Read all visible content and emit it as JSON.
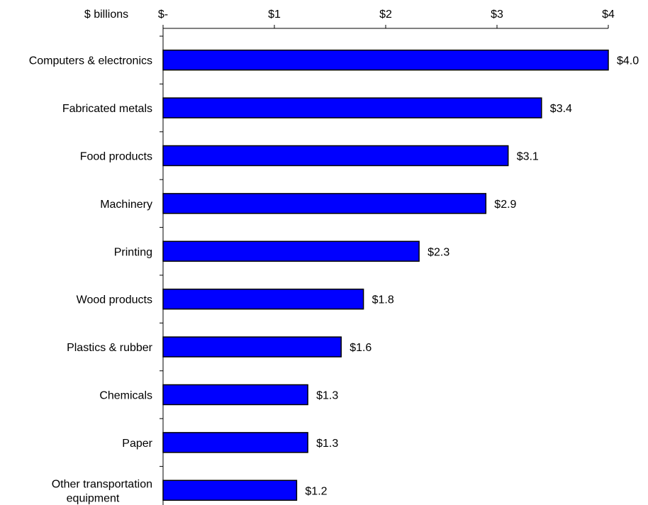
{
  "chart_data": {
    "type": "bar",
    "orientation": "horizontal",
    "unit_label": "$ billions",
    "title": "",
    "xlabel": "",
    "ylabel": "",
    "xlim": [
      0,
      4
    ],
    "x_ticks": [
      {
        "value": 0,
        "label": "$-"
      },
      {
        "value": 1,
        "label": "$1"
      },
      {
        "value": 2,
        "label": "$2"
      },
      {
        "value": 3,
        "label": "$3"
      },
      {
        "value": 4,
        "label": "$4"
      }
    ],
    "x_axis_position": "top",
    "grid": false,
    "legend": "none",
    "bar_color": "#0000FF",
    "bar_edge_color": "#000000",
    "categories": [
      [
        "Computers & electronics"
      ],
      [
        "Fabricated metals"
      ],
      [
        "Food products"
      ],
      [
        "Machinery"
      ],
      [
        "Printing"
      ],
      [
        "Wood products"
      ],
      [
        "Plastics & rubber"
      ],
      [
        "Chemicals"
      ],
      [
        "Paper"
      ],
      [
        "Other transportation",
        "equipment"
      ]
    ],
    "values": [
      4.0,
      3.4,
      3.1,
      2.9,
      2.3,
      1.8,
      1.6,
      1.3,
      1.3,
      1.2
    ],
    "data_labels": [
      "$4.0",
      "$3.4",
      "$3.1",
      "$2.9",
      "$2.3",
      "$1.8",
      "$1.6",
      "$1.3",
      "$1.3",
      "$1.2"
    ]
  }
}
